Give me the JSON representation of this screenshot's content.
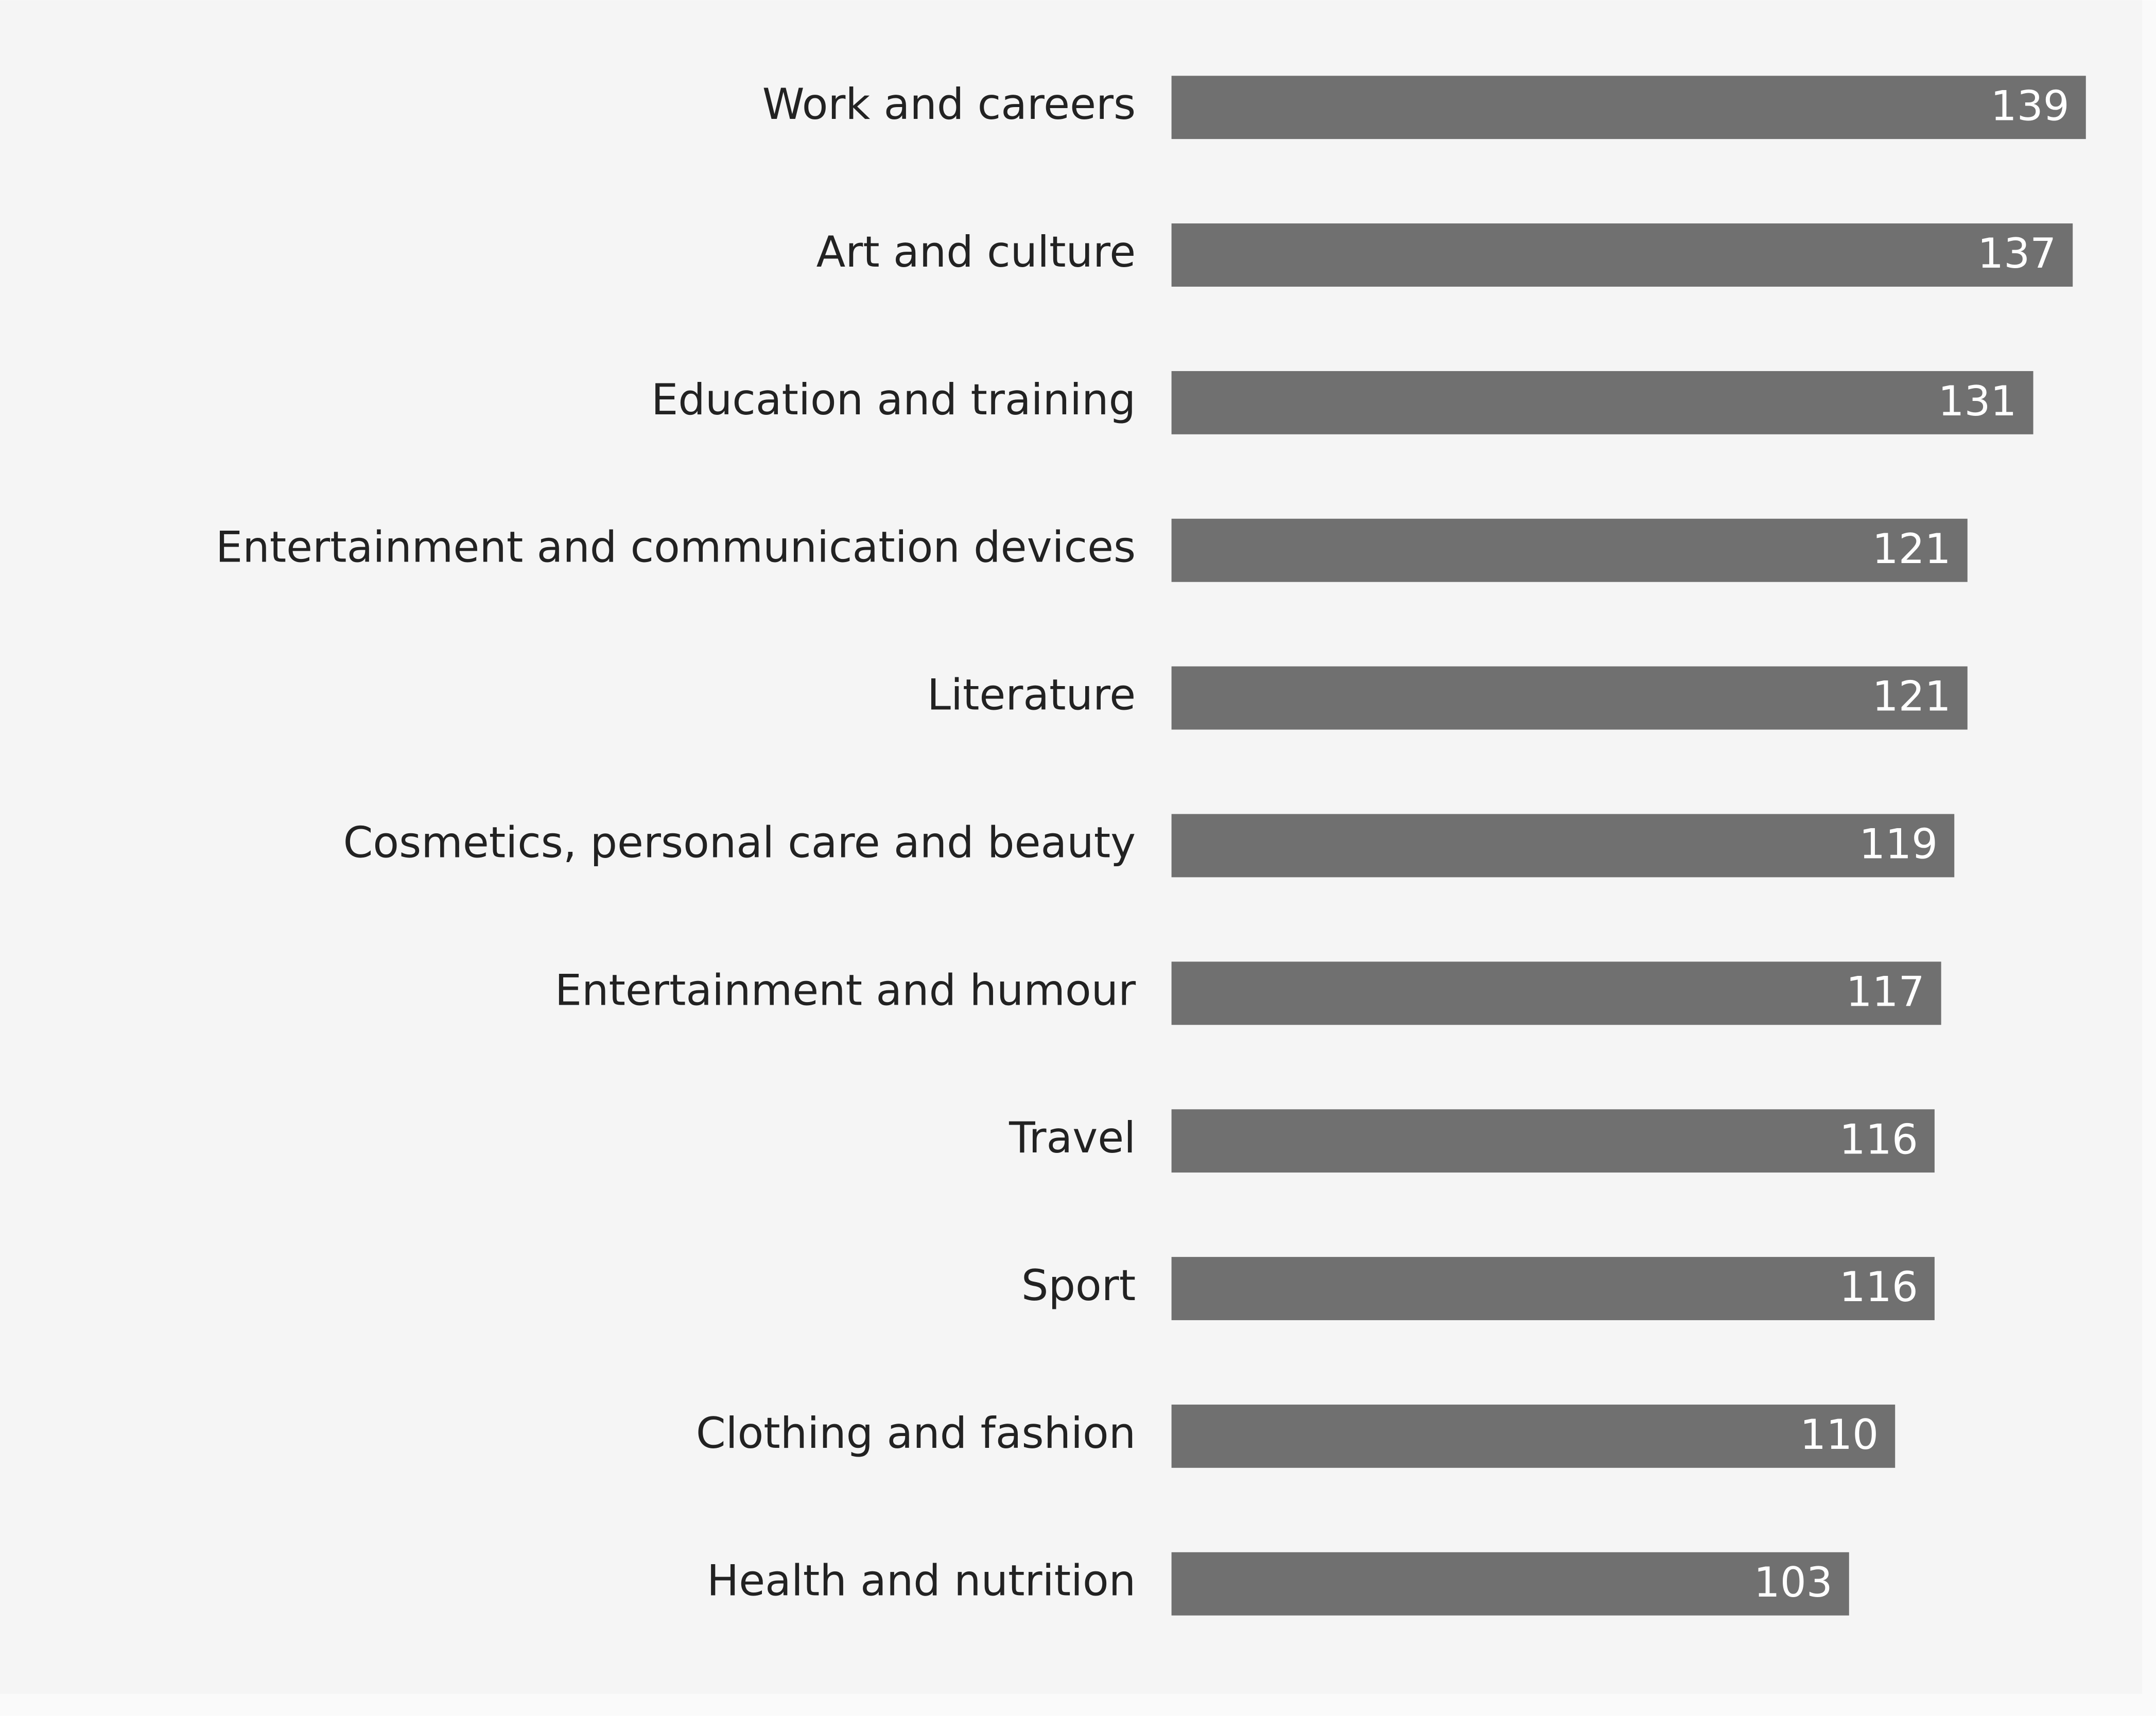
{
  "chart_data": {
    "type": "bar",
    "orientation": "horizontal",
    "color": "#707070",
    "categories": [
      "Work and careers",
      "Art and culture",
      "Education and training",
      "Entertainment and communication devices",
      "Literature",
      "Cosmetics, personal care and beauty",
      "Entertainment and humour",
      "Travel",
      "Sport",
      "Clothing and fashion",
      "Health and nutrition"
    ],
    "values": [
      139,
      137,
      131,
      121,
      121,
      119,
      117,
      116,
      116,
      110,
      103
    ]
  }
}
